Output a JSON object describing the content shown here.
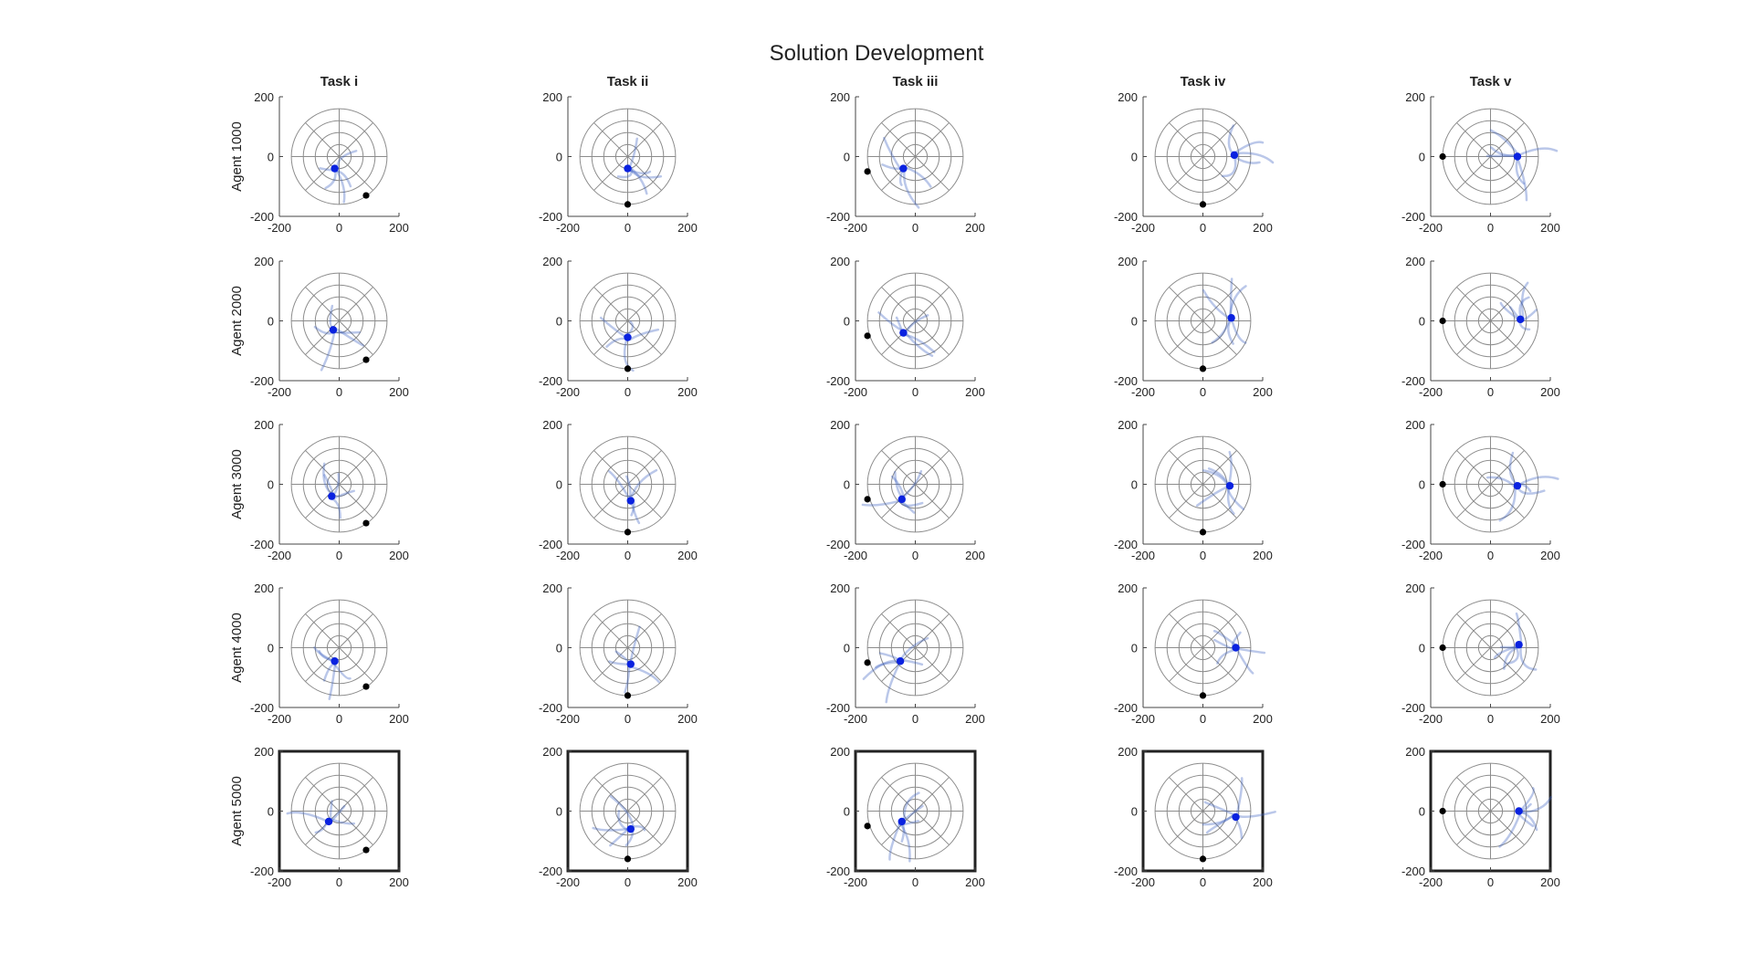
{
  "title": "Solution Development",
  "colors": {
    "trajectory": "#3a5fc0",
    "start_point": "#0a22e0",
    "goal_point": "#000000",
    "grid": "#8c8c8c",
    "axis": "#444444",
    "highlight_box": "#222222"
  },
  "chart_data": {
    "type": "scatter",
    "title": "Solution Development",
    "columns": [
      "Task i",
      "Task ii",
      "Task iii",
      "Task iv",
      "Task v"
    ],
    "rows": [
      "Agent 1000",
      "Agent 2000",
      "Agent 3000",
      "Agent 4000",
      "Agent 5000"
    ],
    "xlim": [
      -200,
      200
    ],
    "ylim": [
      -200,
      200
    ],
    "xticks": [
      "-200",
      "0",
      "200"
    ],
    "yticks": [
      "-200",
      "0",
      "200"
    ],
    "polar_rings": [
      40,
      80,
      120,
      160
    ],
    "highlighted_row": "Agent 5000",
    "goals": [
      [
        90,
        -130
      ],
      [
        0,
        -160
      ],
      [
        -160,
        -50
      ],
      [
        0,
        -160
      ],
      [
        -160,
        0
      ]
    ],
    "starts": [
      [
        [
          -15,
          -40
        ],
        [
          0,
          -40
        ],
        [
          -40,
          -40
        ],
        [
          105,
          5
        ],
        [
          90,
          0
        ]
      ],
      [
        [
          -20,
          -30
        ],
        [
          0,
          -55
        ],
        [
          -40,
          -40
        ],
        [
          95,
          10
        ],
        [
          100,
          5
        ]
      ],
      [
        [
          -25,
          -40
        ],
        [
          10,
          -55
        ],
        [
          -45,
          -50
        ],
        [
          90,
          -5
        ],
        [
          90,
          -5
        ]
      ],
      [
        [
          -15,
          -45
        ],
        [
          10,
          -55
        ],
        [
          -50,
          -45
        ],
        [
          110,
          0
        ],
        [
          95,
          10
        ]
      ],
      [
        [
          -35,
          -35
        ],
        [
          10,
          -60
        ],
        [
          -45,
          -35
        ],
        [
          110,
          -20
        ],
        [
          95,
          0
        ]
      ]
    ]
  }
}
